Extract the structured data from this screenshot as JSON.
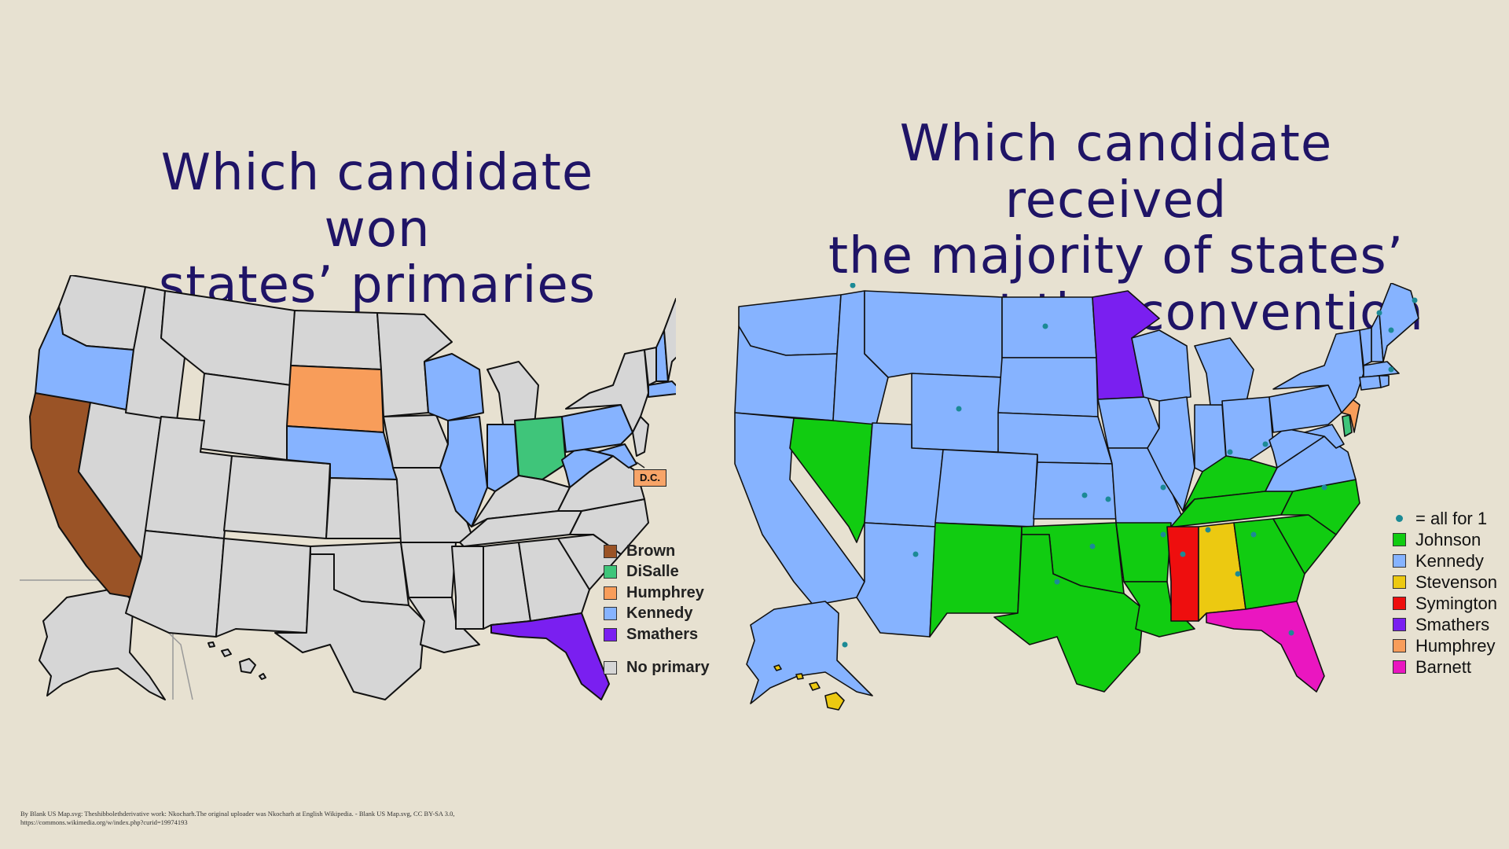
{
  "titles": {
    "left_line1": "Which candidate won",
    "left_line2": "states’ primaries",
    "right_line1": "Which candidate received",
    "right_line2": "the majority of states’",
    "right_line3": "votes at the convention"
  },
  "colors": {
    "background": "#e7e1d1",
    "title": "#1f1466",
    "brown": "#9a5326",
    "disalle": "#3fc57a",
    "humphrey": "#f89d5a",
    "kennedy": "#86b3ff",
    "smathers": "#7a1ff0",
    "no_primary": "#d6d6d6",
    "johnson": "#11cc11",
    "stevenson": "#ecc911",
    "symington": "#ee0e0e",
    "barnett": "#ea16c0",
    "dot": "#1c8a95"
  },
  "left_map": {
    "dc_label": "D.C.",
    "legend": [
      {
        "label": "Brown",
        "color": "#9a5326"
      },
      {
        "label": "DiSalle",
        "color": "#3fc57a"
      },
      {
        "label": "Humphrey",
        "color": "#f89d5a"
      },
      {
        "label": "Kennedy",
        "color": "#86b3ff"
      },
      {
        "label": "Smathers",
        "color": "#7a1ff0"
      }
    ],
    "legend_no_primary": {
      "label": "No primary",
      "color": "#d6d6d6"
    },
    "state_results": {
      "California": "Brown",
      "Ohio": "DiSalle",
      "South Dakota": "Humphrey",
      "District of Columbia": "Humphrey",
      "Oregon": "Kennedy",
      "Nebraska": "Kennedy",
      "Wisconsin": "Kennedy",
      "Illinois": "Kennedy",
      "Indiana": "Kennedy",
      "West Virginia": "Kennedy",
      "Pennsylvania": "Kennedy",
      "Maryland": "Kennedy",
      "Massachusetts": "Kennedy",
      "New Hampshire": "Kennedy",
      "Florida": "Smathers"
    }
  },
  "right_map": {
    "legend_dot_label": "= all for 1",
    "legend": [
      {
        "label": "Johnson",
        "color": "#11cc11"
      },
      {
        "label": "Kennedy",
        "color": "#86b3ff"
      },
      {
        "label": "Stevenson",
        "color": "#ecc911"
      },
      {
        "label": "Symington",
        "color": "#ee0e0e"
      },
      {
        "label": "Smathers",
        "color": "#7a1ff0"
      },
      {
        "label": "Humphrey",
        "color": "#f89d5a"
      },
      {
        "label": "Barnett",
        "color": "#ea16c0"
      }
    ]
  },
  "credit_line1": "By Blank US Map.svg: Theshibbolethderivative work: Nkocharh.The original uploader was Nkocharh at English Wikipedia. - Blank US Map.svg, CC BY-SA 3.0,",
  "credit_line2": "https://commons.wikimedia.org/w/index.php?curid=19974193"
}
